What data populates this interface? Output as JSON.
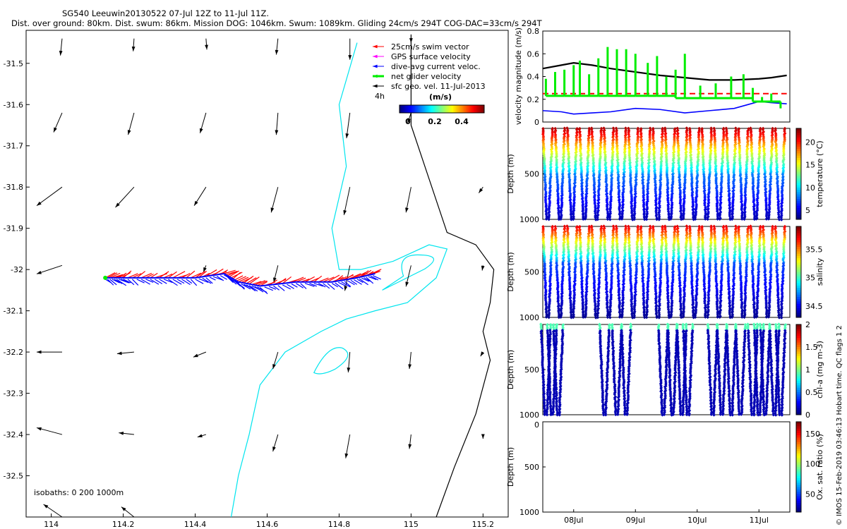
{
  "title_line1": "SG540 Leeuwin20130522 07-Jul 12Z to 11-Jul 11Z.",
  "title_line2": "Dist. over ground: 80km. Dist. swum: 86km. Mission DOG: 1046km. Swum: 1089km. Gliding 24cm/s 294T COG-DAC=33cm/s 294T",
  "side_note": "© IMOS 15-Feb-2019 03:46:13 Hobart time. QC flags 1  2",
  "colors": {
    "swim": "#ff0000",
    "gps": "#ff00ff",
    "dac": "#0000ff",
    "net": "#00ee00",
    "sfc": "#000000",
    "isobath0": "#000000",
    "isobath200": "#00e5ee",
    "velocity": "#000000"
  },
  "chart_data": [
    {
      "type": "map",
      "name": "track-map",
      "xlim": [
        113.93,
        115.27
      ],
      "ylim": [
        -32.6,
        -31.42
      ],
      "xticks": [
        "114",
        "114.2",
        "114.4",
        "114.6",
        "114.8",
        "115",
        "115.2"
      ],
      "xtick_values": [
        114,
        114.2,
        114.4,
        114.6,
        114.8,
        115,
        115.2
      ],
      "yticks": [
        "-31.5",
        "-31.6",
        "-31.7",
        "-31.8",
        "-31.9",
        "-32",
        "-32.1",
        "-32.2",
        "-32.3",
        "-32.4",
        "-32.5"
      ],
      "ytick_values": [
        -31.5,
        -31.6,
        -31.7,
        -31.8,
        -31.9,
        -32,
        -32.1,
        -32.2,
        -32.3,
        -32.4,
        -32.5
      ],
      "legend": [
        "25cm/s swim vector",
        "GPS surface velocity",
        "dive-avg current veloc.",
        "net glider velocity",
        "sfc geo. vel. 11-Jul-2013"
      ],
      "legend_extra": "4h",
      "colorbar_label": "(m/s)",
      "colorbar_ticks": [
        "0",
        "0.2",
        "0.4"
      ],
      "isobaths_label": "isobaths: 0   200   1000m",
      "sfc_arrows": [
        {
          "lon": 114.03,
          "lat": -31.44,
          "u": -0.02,
          "v": -0.2
        },
        {
          "lon": 114.23,
          "lat": -31.44,
          "u": -0.01,
          "v": -0.15
        },
        {
          "lon": 114.43,
          "lat": -31.44,
          "u": 0.01,
          "v": -0.13
        },
        {
          "lon": 114.63,
          "lat": -31.44,
          "u": -0.02,
          "v": -0.19
        },
        {
          "lon": 114.83,
          "lat": -31.44,
          "u": 0.0,
          "v": -0.25
        },
        {
          "lon": 115.0,
          "lat": -31.44,
          "u": 0.0,
          "v": -0.05
        },
        {
          "lon": 114.03,
          "lat": -31.62,
          "u": -0.1,
          "v": -0.23
        },
        {
          "lon": 114.23,
          "lat": -31.62,
          "u": -0.07,
          "v": -0.26
        },
        {
          "lon": 114.43,
          "lat": -31.62,
          "u": -0.07,
          "v": -0.24
        },
        {
          "lon": 114.63,
          "lat": -31.62,
          "u": -0.02,
          "v": -0.26
        },
        {
          "lon": 114.83,
          "lat": -31.62,
          "u": -0.04,
          "v": -0.3
        },
        {
          "lon": 115.0,
          "lat": -31.62,
          "u": -0.04,
          "v": -0.12
        },
        {
          "lon": 114.03,
          "lat": -31.8,
          "u": -0.3,
          "v": -0.22
        },
        {
          "lon": 114.23,
          "lat": -31.8,
          "u": -0.22,
          "v": -0.24
        },
        {
          "lon": 114.43,
          "lat": -31.8,
          "u": -0.14,
          "v": -0.22
        },
        {
          "lon": 114.63,
          "lat": -31.8,
          "u": -0.08,
          "v": -0.3
        },
        {
          "lon": 114.83,
          "lat": -31.8,
          "u": -0.07,
          "v": -0.33
        },
        {
          "lon": 115.0,
          "lat": -31.8,
          "u": -0.06,
          "v": -0.3
        },
        {
          "lon": 115.2,
          "lat": -31.8,
          "u": -0.05,
          "v": -0.07
        },
        {
          "lon": 114.03,
          "lat": -31.99,
          "u": -0.3,
          "v": -0.1
        },
        {
          "lon": 114.43,
          "lat": -31.99,
          "u": -0.03,
          "v": -0.08
        },
        {
          "lon": 114.63,
          "lat": -31.99,
          "u": -0.05,
          "v": -0.2
        },
        {
          "lon": 114.83,
          "lat": -31.99,
          "u": -0.06,
          "v": -0.3
        },
        {
          "lon": 115.0,
          "lat": -31.99,
          "u": -0.06,
          "v": -0.25
        },
        {
          "lon": 115.2,
          "lat": -31.99,
          "u": -0.01,
          "v": -0.06
        },
        {
          "lon": 114.03,
          "lat": -32.2,
          "u": -0.3,
          "v": 0.0
        },
        {
          "lon": 114.23,
          "lat": -32.2,
          "u": -0.2,
          "v": -0.02
        },
        {
          "lon": 114.43,
          "lat": -32.2,
          "u": -0.15,
          "v": -0.06
        },
        {
          "lon": 114.63,
          "lat": -32.2,
          "u": -0.06,
          "v": -0.2
        },
        {
          "lon": 114.83,
          "lat": -32.2,
          "u": -0.02,
          "v": -0.24
        },
        {
          "lon": 115.0,
          "lat": -32.2,
          "u": -0.02,
          "v": -0.2
        },
        {
          "lon": 115.2,
          "lat": -32.2,
          "u": -0.03,
          "v": -0.05
        },
        {
          "lon": 114.03,
          "lat": -32.4,
          "u": -0.3,
          "v": 0.08
        },
        {
          "lon": 114.23,
          "lat": -32.4,
          "u": -0.18,
          "v": 0.02
        },
        {
          "lon": 114.43,
          "lat": -32.4,
          "u": -0.1,
          "v": -0.03
        },
        {
          "lon": 114.63,
          "lat": -32.4,
          "u": -0.06,
          "v": -0.2
        },
        {
          "lon": 114.83,
          "lat": -32.4,
          "u": -0.05,
          "v": -0.28
        },
        {
          "lon": 115.0,
          "lat": -32.4,
          "u": -0.02,
          "v": -0.17
        },
        {
          "lon": 115.2,
          "lat": -32.4,
          "u": 0.0,
          "v": -0.05
        },
        {
          "lon": 114.03,
          "lat": -32.6,
          "u": -0.22,
          "v": 0.15
        },
        {
          "lon": 114.23,
          "lat": -32.6,
          "u": -0.15,
          "v": 0.12
        }
      ],
      "track": [
        [
          114.15,
          -32.02
        ],
        [
          114.2,
          -32.02
        ],
        [
          114.3,
          -32.02
        ],
        [
          114.4,
          -32.02
        ],
        [
          114.48,
          -32.01
        ],
        [
          114.52,
          -32.03
        ],
        [
          114.58,
          -32.04
        ],
        [
          114.68,
          -32.03
        ],
        [
          114.78,
          -32.03
        ],
        [
          114.85,
          -32.02
        ],
        [
          114.9,
          -32.01
        ]
      ],
      "coast_0m": [
        [
          115.0,
          -31.43
        ],
        [
          115.0,
          -31.65
        ],
        [
          115.05,
          -31.78
        ],
        [
          115.1,
          -31.91
        ],
        [
          115.18,
          -31.94
        ],
        [
          115.23,
          -32.0
        ],
        [
          115.22,
          -32.08
        ],
        [
          115.2,
          -32.15
        ],
        [
          115.22,
          -32.22
        ],
        [
          115.18,
          -32.35
        ],
        [
          115.12,
          -32.48
        ],
        [
          115.07,
          -32.6
        ]
      ],
      "isobath_200m": [
        [
          114.85,
          -31.45
        ],
        [
          114.8,
          -31.6
        ],
        [
          114.82,
          -31.75
        ],
        [
          114.78,
          -31.9
        ],
        [
          114.8,
          -32.0
        ],
        [
          114.86,
          -32.0
        ],
        [
          114.95,
          -31.98
        ],
        [
          115.05,
          -31.94
        ],
        [
          115.1,
          -31.95
        ],
        [
          115.07,
          -32.02
        ],
        [
          114.99,
          -32.08
        ],
        [
          114.9,
          -32.1
        ],
        [
          114.82,
          -32.12
        ],
        [
          114.75,
          -32.15
        ],
        [
          114.65,
          -32.2
        ],
        [
          114.58,
          -32.28
        ],
        [
          114.55,
          -32.4
        ],
        [
          114.52,
          -32.5
        ],
        [
          114.5,
          -32.6
        ]
      ]
    },
    {
      "type": "line",
      "name": "velocity-panel",
      "ylabel": "velocity magnitude (m/s)",
      "ylim": [
        0,
        0.8
      ],
      "yticks": [
        "0",
        "0.2",
        "0.4",
        "0.6",
        "0.8"
      ],
      "ytick_values": [
        0,
        0.2,
        0.4,
        0.6,
        0.8
      ],
      "xlim": [
        7.5,
        11.5
      ],
      "series": [
        {
          "name": "sfc speed",
          "color": "#000000",
          "x": [
            7.5,
            7.8,
            8.0,
            8.3,
            8.6,
            9.0,
            9.4,
            9.8,
            10.2,
            10.6,
            11.0,
            11.2,
            11.45
          ],
          "values": [
            0.47,
            0.5,
            0.52,
            0.5,
            0.47,
            0.44,
            0.41,
            0.39,
            0.37,
            0.37,
            0.38,
            0.39,
            0.41
          ]
        },
        {
          "name": "dive-avg",
          "color": "#0000ff",
          "x": [
            7.5,
            7.8,
            8.0,
            8.3,
            8.6,
            9.0,
            9.4,
            9.8,
            10.2,
            10.6,
            10.8,
            11.0,
            11.2,
            11.45
          ],
          "values": [
            0.1,
            0.09,
            0.07,
            0.08,
            0.09,
            0.12,
            0.11,
            0.08,
            0.1,
            0.12,
            0.15,
            0.18,
            0.17,
            0.16
          ]
        },
        {
          "name": "swim",
          "color": "#ff0000",
          "dashed": true,
          "x": [
            7.5,
            11.45
          ],
          "values": [
            0.25,
            0.25
          ]
        }
      ],
      "net_spikes": [
        [
          7.55,
          0.38
        ],
        [
          7.7,
          0.44
        ],
        [
          7.85,
          0.46
        ],
        [
          8.0,
          0.5
        ],
        [
          8.1,
          0.54
        ],
        [
          8.25,
          0.42
        ],
        [
          8.4,
          0.56
        ],
        [
          8.55,
          0.66
        ],
        [
          8.7,
          0.64
        ],
        [
          8.85,
          0.64
        ],
        [
          9.0,
          0.6
        ],
        [
          9.2,
          0.52
        ],
        [
          9.35,
          0.58
        ],
        [
          9.5,
          0.4
        ],
        [
          9.65,
          0.46
        ],
        [
          9.8,
          0.6
        ],
        [
          10.05,
          0.32
        ],
        [
          10.3,
          0.34
        ],
        [
          10.55,
          0.4
        ],
        [
          10.75,
          0.42
        ],
        [
          10.9,
          0.3
        ],
        [
          11.05,
          0.22
        ],
        [
          11.2,
          0.25
        ],
        [
          11.35,
          0.12
        ]
      ]
    },
    {
      "type": "scatter",
      "name": "temperature-section",
      "ylabel": "Depth (m)",
      "ylim": [
        1000,
        0
      ],
      "yticks": [
        "500",
        "1000"
      ],
      "ytick_values": [
        500,
        1000
      ],
      "colorbar_label": "temperature (°C)",
      "colorbar_ticks": [
        "5",
        "10",
        "15",
        "20"
      ],
      "colorbar_tick_values": [
        5,
        10,
        15,
        20
      ],
      "clim": [
        3,
        23
      ],
      "dives": 20,
      "max_depth": 1000
    },
    {
      "type": "scatter",
      "name": "salinity-section",
      "ylabel": "Depth (m)",
      "ylim": [
        1000,
        0
      ],
      "yticks": [
        "500",
        "1000"
      ],
      "ytick_values": [
        500,
        1000
      ],
      "colorbar_label": "salinity",
      "colorbar_ticks": [
        "34.5",
        "35",
        "35.5"
      ],
      "colorbar_tick_values": [
        34.5,
        35,
        35.5
      ],
      "clim": [
        34.3,
        35.9
      ],
      "dives": 20,
      "max_depth": 1000
    },
    {
      "type": "scatter",
      "name": "chla-section",
      "ylabel": "Depth (m)",
      "ylim": [
        1000,
        0
      ],
      "yticks": [
        "500",
        "1000"
      ],
      "ytick_values": [
        500,
        1000
      ],
      "colorbar_label": "chl-a (mg m-3)",
      "colorbar_ticks": [
        "0",
        "0.5",
        "1",
        "1.5",
        "2"
      ],
      "colorbar_tick_values": [
        0,
        0.5,
        1,
        1.5,
        2
      ],
      "clim": [
        0,
        2
      ],
      "dive_groups": [
        [
          7.55,
          7.65,
          7.75
        ],
        [
          8.5,
          8.7,
          8.85
        ],
        [
          9.45,
          9.6,
          9.75,
          9.85
        ],
        [
          10.25,
          10.4,
          10.55,
          10.7
        ],
        [
          10.9,
          11.0,
          11.1,
          11.25,
          11.35
        ]
      ],
      "max_depth": 1000
    },
    {
      "type": "scatter",
      "name": "oxygen-section",
      "ylabel": "Depth (m)",
      "ylim": [
        1000,
        0
      ],
      "yticks": [
        "0",
        "500",
        "1000"
      ],
      "ytick_values": [
        0,
        500,
        1000
      ],
      "colorbar_label": "Ox. sat. ratio (%)",
      "colorbar_ticks": [
        "50",
        "100",
        "150"
      ],
      "colorbar_tick_values": [
        50,
        100,
        150
      ],
      "clim": [
        20,
        170
      ],
      "xticks": [
        "08Jul",
        "09Jul",
        "10Jul",
        "11Jul"
      ],
      "xtick_values": [
        8,
        9,
        10,
        11
      ]
    }
  ]
}
